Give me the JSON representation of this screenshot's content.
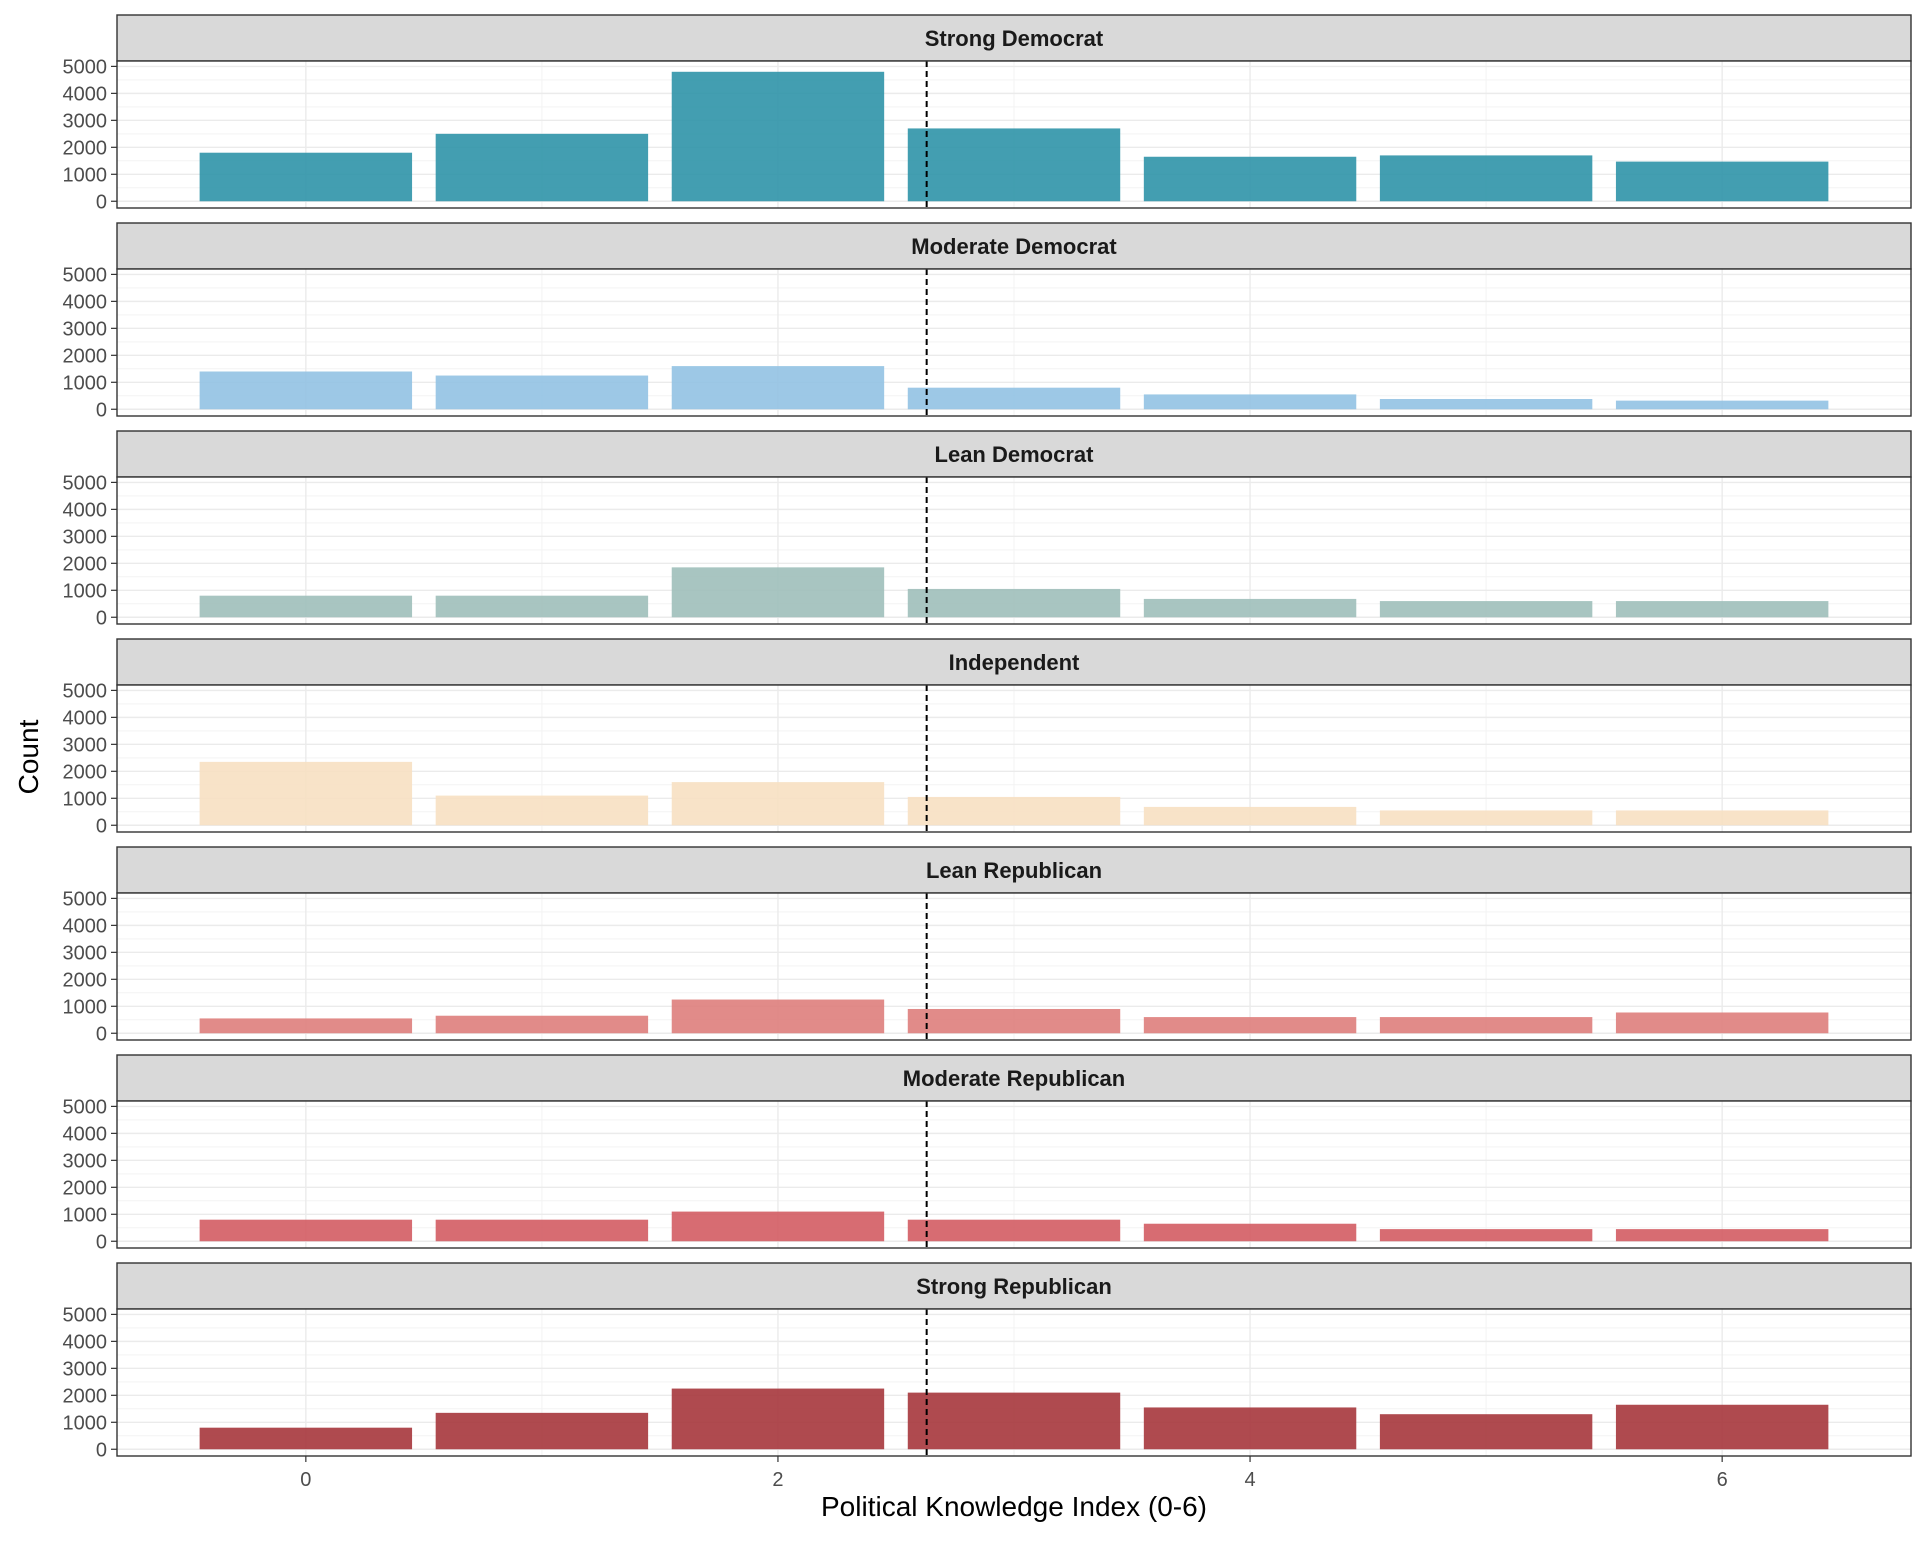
{
  "colors": {
    "strip_bg": "#d9d9d9",
    "panel_border": "#333333",
    "grid_major": "#ebebeb",
    "grid_minor": "#f3f3f3",
    "reference_line": "#000000"
  },
  "chart_data": {
    "type": "bar",
    "xlabel": "Political Knowledge Index (0-6)",
    "ylabel": "Count",
    "x": [
      0,
      1,
      2,
      3,
      4,
      5,
      6
    ],
    "x_tick_values": [
      0,
      2,
      4,
      6
    ],
    "x_tick_labels": [
      "0",
      "2",
      "4",
      "6"
    ],
    "xlim": [
      -0.8,
      6.8
    ],
    "ylim": [
      -250,
      5200
    ],
    "y_ticks": [
      0,
      1000,
      2000,
      3000,
      4000,
      5000
    ],
    "y_tick_labels": [
      "0",
      "1000",
      "2000",
      "3000",
      "4000",
      "5000"
    ],
    "reference_line_x": 2.63,
    "reference_line_style": "dashed",
    "grid": true,
    "series": [
      {
        "name": "Strong Democrat",
        "color": "#2f93a8",
        "values": [
          1800,
          2500,
          4800,
          2700,
          1650,
          1700,
          1470
        ]
      },
      {
        "name": "Moderate Democrat",
        "color": "#92c2e3",
        "values": [
          1400,
          1250,
          1600,
          800,
          550,
          380,
          320
        ]
      },
      {
        "name": "Lean Democrat",
        "color": "#9fbfba",
        "values": [
          800,
          800,
          1850,
          1050,
          680,
          600,
          600
        ]
      },
      {
        "name": "Independent",
        "color": "#f7e0c2",
        "values": [
          2350,
          1100,
          1600,
          1050,
          680,
          550,
          550
        ]
      },
      {
        "name": "Lean Republican",
        "color": "#de7e7c",
        "values": [
          550,
          650,
          1250,
          900,
          600,
          600,
          770
        ]
      },
      {
        "name": "Moderate Republican",
        "color": "#d35c63",
        "values": [
          800,
          800,
          1100,
          800,
          650,
          450,
          450
        ]
      },
      {
        "name": "Strong Republican",
        "color": "#a6363c",
        "values": [
          800,
          1350,
          2250,
          2100,
          1550,
          1300,
          1650
        ]
      }
    ]
  }
}
